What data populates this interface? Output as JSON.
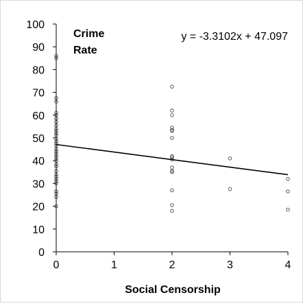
{
  "chart_data": {
    "type": "scatter",
    "title": "",
    "xlabel": "Social Censorship",
    "ylabel": "",
    "inner_label": [
      "Crime",
      "Rate"
    ],
    "trendline_equation": "y = -3.3102x + 47.097",
    "trendline": {
      "slope": -3.3102,
      "intercept": 47.097
    },
    "xlim": [
      0,
      4
    ],
    "ylim": [
      0,
      100
    ],
    "x_ticks": [
      0,
      1,
      2,
      3,
      4
    ],
    "y_ticks": [
      0,
      10,
      20,
      30,
      40,
      50,
      60,
      70,
      80,
      90,
      100
    ],
    "grid": false,
    "legend": "none",
    "marker_color": "#595959",
    "line_color": "#000000",
    "series": [
      {
        "points": [
          [
            0,
            86
          ],
          [
            0,
            85
          ],
          [
            0,
            67.5
          ],
          [
            0,
            66
          ],
          [
            0,
            61
          ],
          [
            0,
            60
          ],
          [
            0,
            58.5
          ],
          [
            0,
            57
          ],
          [
            0,
            55.5
          ],
          [
            0,
            54
          ],
          [
            0,
            53
          ],
          [
            0,
            52
          ],
          [
            0,
            51
          ],
          [
            0,
            49.5
          ],
          [
            0,
            48.5
          ],
          [
            0,
            47.5
          ],
          [
            0,
            46.5
          ],
          [
            0,
            45
          ],
          [
            0,
            44
          ],
          [
            0,
            43
          ],
          [
            0,
            42
          ],
          [
            0,
            41
          ],
          [
            0,
            40
          ],
          [
            0,
            38.5
          ],
          [
            0,
            37.5
          ],
          [
            0,
            35.5
          ],
          [
            0,
            34
          ],
          [
            0,
            33
          ],
          [
            0,
            32
          ],
          [
            0,
            31
          ],
          [
            0,
            30
          ],
          [
            0,
            26.5
          ],
          [
            0,
            25.5
          ],
          [
            0,
            24
          ],
          [
            0,
            20
          ],
          [
            2,
            72.5
          ],
          [
            2,
            62
          ],
          [
            2,
            60
          ],
          [
            2,
            54.5
          ],
          [
            2,
            53.5
          ],
          [
            2,
            53
          ],
          [
            2,
            50
          ],
          [
            2,
            42
          ],
          [
            2,
            41.5
          ],
          [
            2,
            40.5
          ],
          [
            2,
            37
          ],
          [
            2,
            35.5
          ],
          [
            2,
            35
          ],
          [
            2,
            27
          ],
          [
            2,
            20.5
          ],
          [
            2,
            18
          ],
          [
            3,
            41
          ],
          [
            3,
            27.5
          ],
          [
            4,
            32
          ],
          [
            4,
            26.5
          ],
          [
            4,
            18.5
          ]
        ]
      }
    ]
  }
}
